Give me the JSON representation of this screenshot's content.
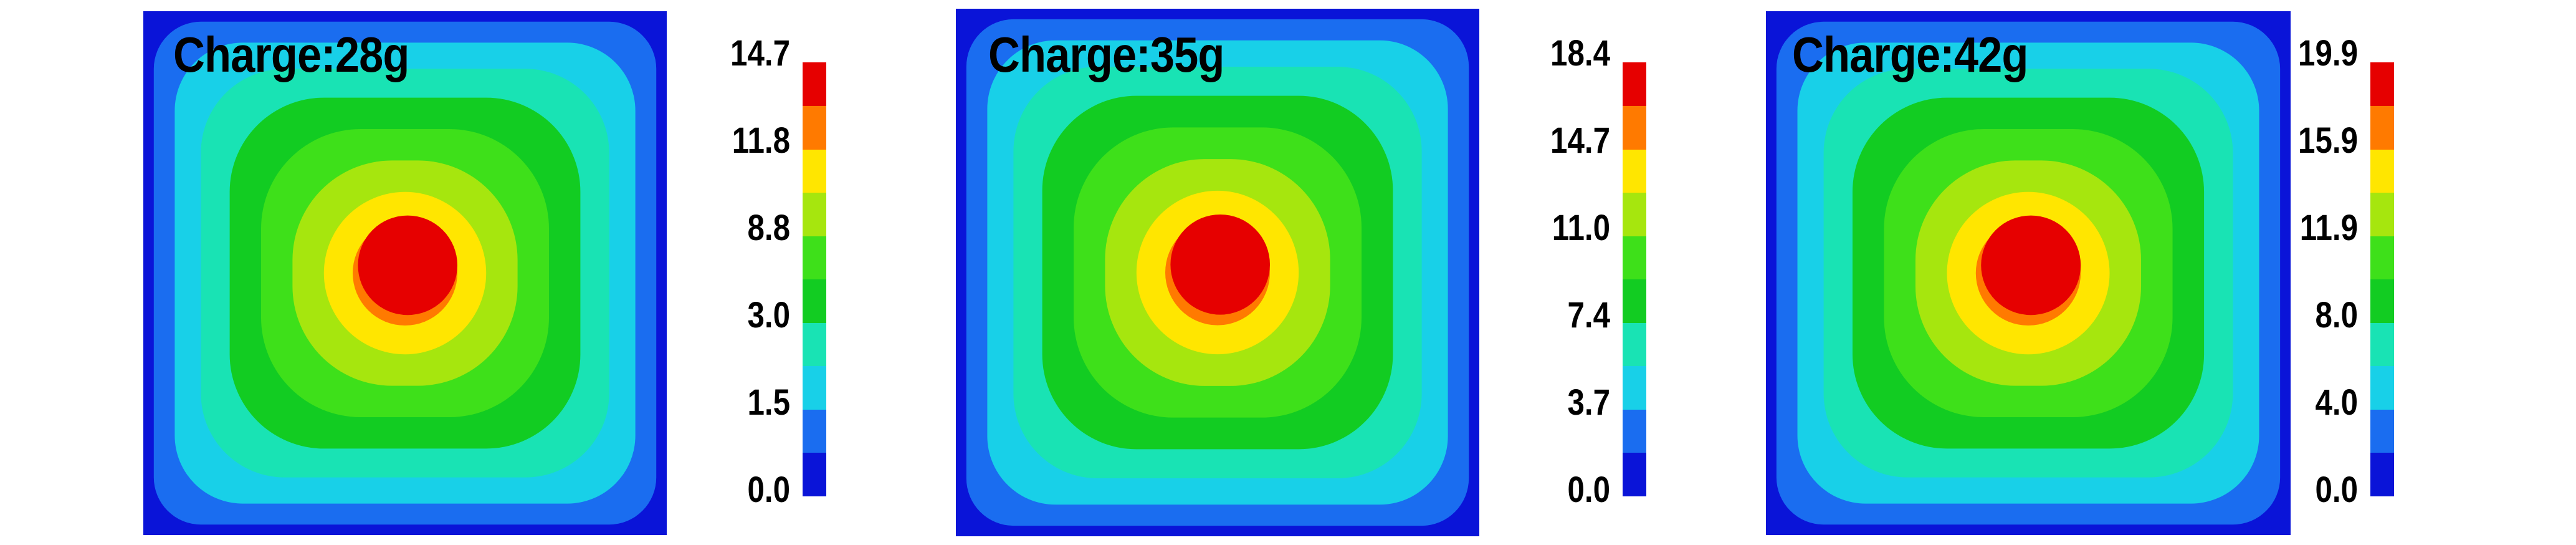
{
  "colors": {
    "levels": [
      "#0a14d8",
      "#1a6df0",
      "#18d0e8",
      "#19e3b4",
      "#12cc22",
      "#3ee01a",
      "#a6e60e",
      "#ffe600",
      "#ff7a00",
      "#e60000"
    ],
    "background": "#0a14d8"
  },
  "chart_data": [
    {
      "type": "heatmap",
      "title": "Charge:28g",
      "colorbar_ticks": [
        "14.7",
        "11.8",
        "8.8",
        "3.0",
        "1.5",
        "0.0"
      ],
      "levels": 10
    },
    {
      "type": "heatmap",
      "title": "Charge:35g",
      "colorbar_ticks": [
        "18.4",
        "14.7",
        "11.0",
        "7.4",
        "3.7",
        "0.0"
      ],
      "levels": 10
    },
    {
      "type": "heatmap",
      "title": "Charge:42g",
      "colorbar_ticks": [
        "19.9",
        "15.9",
        "11.9",
        "8.0",
        "4.0",
        "0.0"
      ],
      "levels": 10
    }
  ]
}
